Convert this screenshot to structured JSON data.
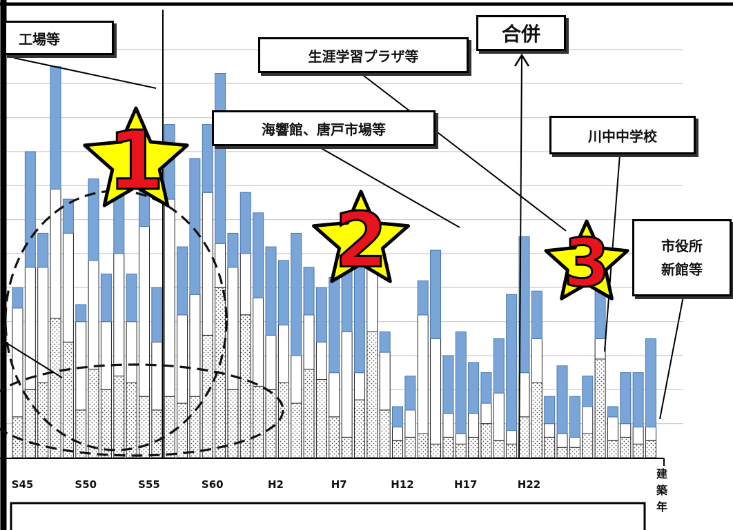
{
  "chart_data": {
    "type": "bar",
    "stacked": true,
    "x_tick_labels": [
      "S45",
      "S50",
      "S55",
      "S60",
      "H2",
      "H7",
      "H12",
      "H17",
      "H22"
    ],
    "xlabel": "建築年",
    "grid": true,
    "ylim": [
      0,
      12
    ],
    "series": [
      {
        "pattern": "dotted",
        "color": "#ffffff",
        "values": [
          1.2,
          2.0,
          2.2,
          4.1,
          3.4,
          1.4,
          2.6,
          2.0,
          2.4,
          2.2,
          1.8,
          1.4,
          1.8,
          1.6,
          1.8,
          3.6,
          5.0,
          2.0,
          4.2,
          2.1,
          2.0,
          2.2,
          1.6,
          2.6,
          2.3,
          1.2,
          0.6,
          1.7,
          3.7,
          1.4,
          0.5,
          0.6,
          0.7,
          0.4,
          0.6,
          0.4,
          0.6,
          1.0,
          0.5,
          0.4,
          1.2,
          2.2,
          0.6,
          0.3,
          0.3,
          0.7,
          2.9,
          0.5,
          0.6,
          0.4,
          0.5
        ]
      },
      {
        "pattern": "plain",
        "color": "#ffffff",
        "values": [
          3.2,
          3.6,
          3.4,
          3.8,
          3.2,
          2.6,
          3.2,
          2.0,
          3.6,
          1.8,
          5.0,
          2.0,
          5.8,
          2.6,
          3.0,
          4.2,
          1.3,
          3.6,
          1.8,
          2.6,
          1.6,
          1.7,
          1.4,
          1.6,
          1.1,
          1.3,
          3.1,
          0.8,
          2.2,
          1.7,
          0.4,
          0.8,
          3.5,
          3.1,
          0.7,
          0.3,
          0.7,
          0.6,
          1.4,
          0.4,
          1.3,
          1.3,
          0.4,
          0.4,
          0.3,
          0.8,
          0.6,
          0.7,
          0.4,
          0.5,
          0.4
        ]
      },
      {
        "pattern": "blue",
        "color": "#7aa5d8",
        "values": [
          0.6,
          3.4,
          1.0,
          3.6,
          1.0,
          0.5,
          2.4,
          1.4,
          2.8,
          1.4,
          2.6,
          1.6,
          2.2,
          2.0,
          4.0,
          2.0,
          5.0,
          1.0,
          1.8,
          2.5,
          2.6,
          1.9,
          3.6,
          1.4,
          1.6,
          2.8,
          2.6,
          3.6,
          1.0,
          0.6,
          0.6,
          1.0,
          1.0,
          2.6,
          1.7,
          3.0,
          1.5,
          0.9,
          1.6,
          4.0,
          4.0,
          1.4,
          0.8,
          2.0,
          1.2,
          0.9,
          1.4,
          0.3,
          1.5,
          1.6,
          2.6
        ]
      }
    ],
    "annotations": [
      "工場等",
      "生涯学習プラザ等",
      "合併",
      "海響館、唐戸市場等",
      "川中中学校",
      "市役所\n新館等"
    ],
    "markers": [
      "1",
      "2",
      "3"
    ]
  },
  "labels": {
    "factory": "工場等",
    "plaza": "生涯学習プラザ等",
    "merger": "合併",
    "kaikyokan": "海響館、唐戸市場等",
    "kawanaka": "川中中学校",
    "cityhall_1": "市役所",
    "cityhall_2": "新館等",
    "axis_unit": [
      "建",
      "築",
      "年"
    ]
  },
  "colors": {
    "blue_fill": "#7aa5d8",
    "blue_stroke": "#4c78ad",
    "star_fill": "#ffff00",
    "number_red": "#e8141d"
  }
}
